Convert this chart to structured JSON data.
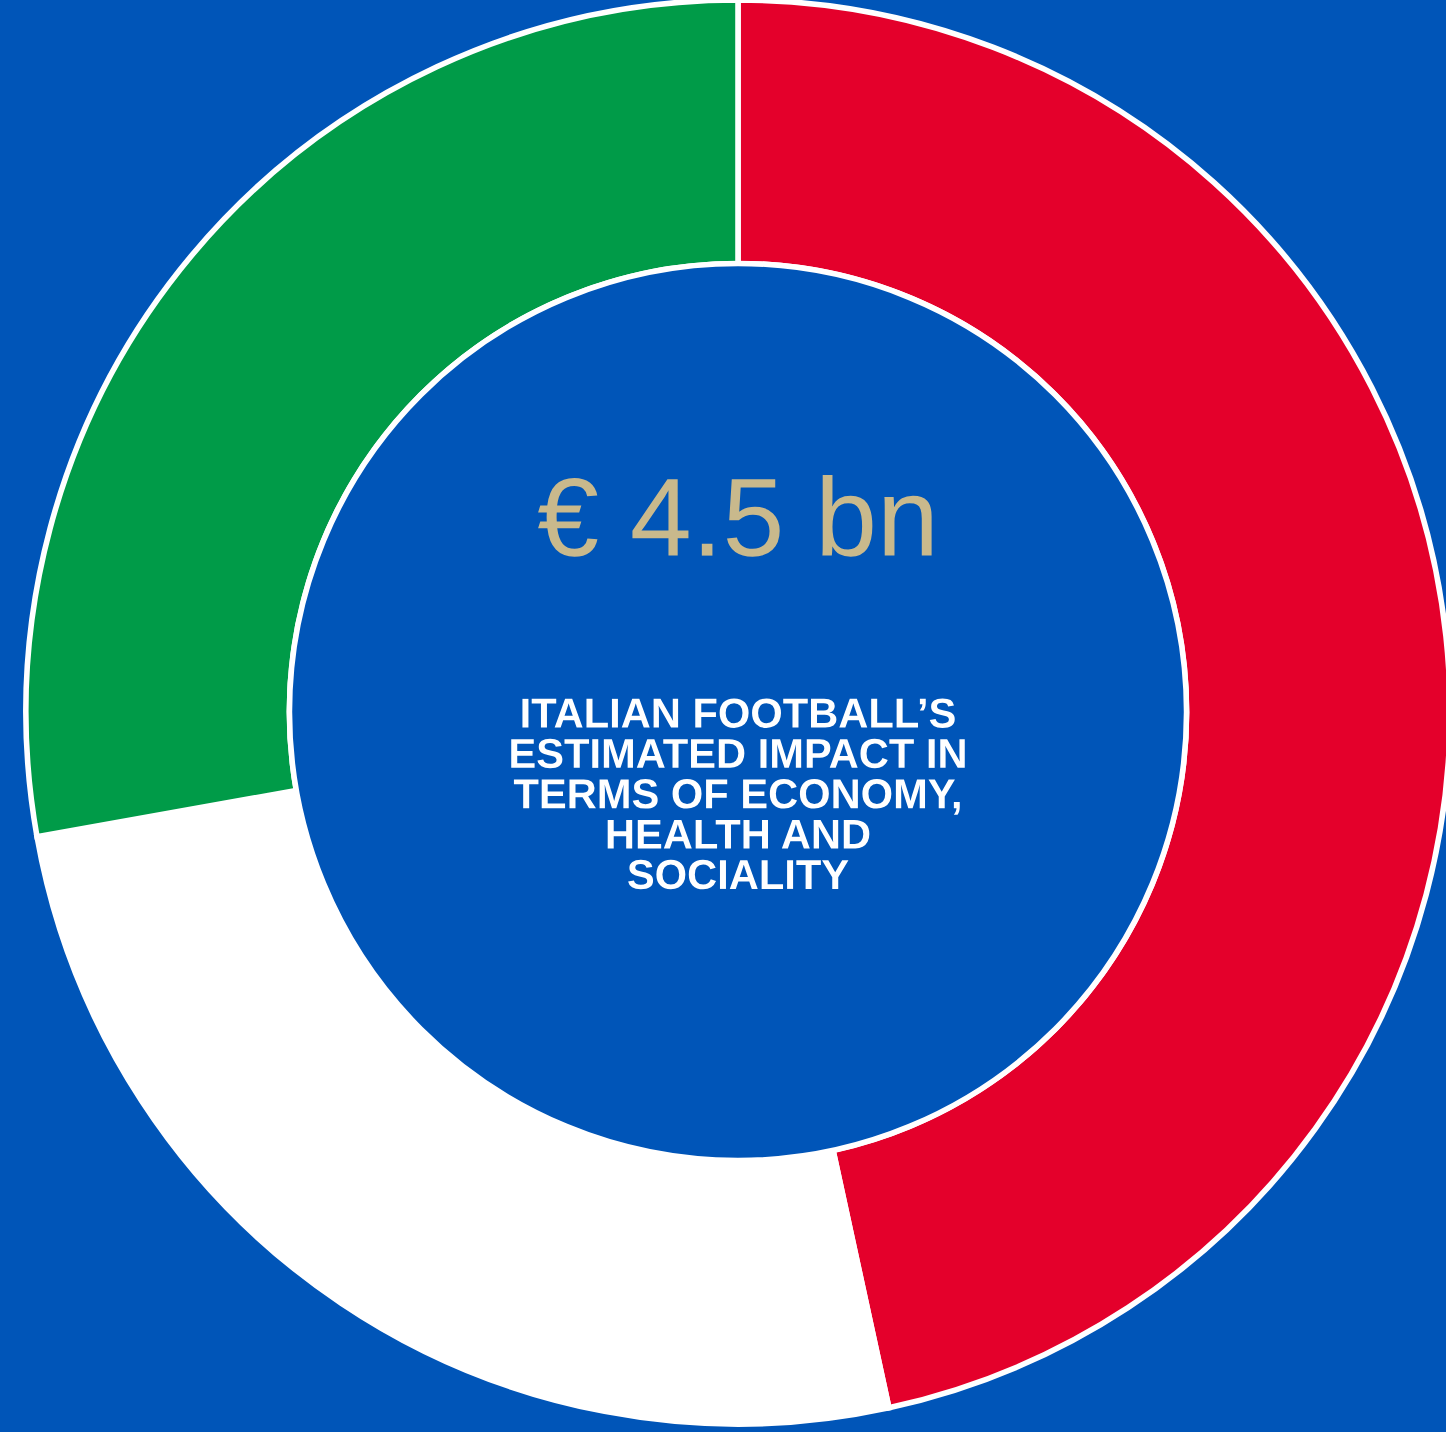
{
  "chart_data": {
    "type": "donut",
    "title": "€ 4.5 bn",
    "subtitle": "ITALIAN FOOTBALL’S\nESTIMATED IMPACT IN\nTERMS OF ECONOMY,\nHEALTH AND\nSOCIALITY",
    "categories": [
      null,
      null,
      null
    ],
    "values": [
      46.6,
      25.6,
      27.8
    ],
    "colors": [
      "#e4002b",
      "#ffffff",
      "#009b48"
    ],
    "legend": false
  }
}
